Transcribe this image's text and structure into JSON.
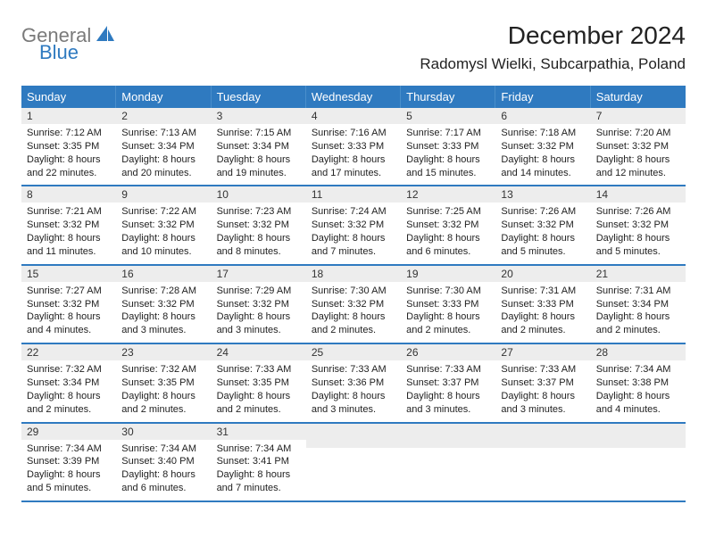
{
  "logo": {
    "word1": "General",
    "word2": "Blue"
  },
  "title": "December 2024",
  "location": "Radomysl Wielki, Subcarpathia, Poland",
  "colors": {
    "brand": "#2f7ac0",
    "gray_band": "#ededed",
    "text": "#222222",
    "logo_gray": "#7a7a7a"
  },
  "weekdays": [
    "Sunday",
    "Monday",
    "Tuesday",
    "Wednesday",
    "Thursday",
    "Friday",
    "Saturday"
  ],
  "weeks": [
    [
      {
        "n": "1",
        "sunrise": "Sunrise: 7:12 AM",
        "sunset": "Sunset: 3:35 PM",
        "day1": "Daylight: 8 hours",
        "day2": "and 22 minutes."
      },
      {
        "n": "2",
        "sunrise": "Sunrise: 7:13 AM",
        "sunset": "Sunset: 3:34 PM",
        "day1": "Daylight: 8 hours",
        "day2": "and 20 minutes."
      },
      {
        "n": "3",
        "sunrise": "Sunrise: 7:15 AM",
        "sunset": "Sunset: 3:34 PM",
        "day1": "Daylight: 8 hours",
        "day2": "and 19 minutes."
      },
      {
        "n": "4",
        "sunrise": "Sunrise: 7:16 AM",
        "sunset": "Sunset: 3:33 PM",
        "day1": "Daylight: 8 hours",
        "day2": "and 17 minutes."
      },
      {
        "n": "5",
        "sunrise": "Sunrise: 7:17 AM",
        "sunset": "Sunset: 3:33 PM",
        "day1": "Daylight: 8 hours",
        "day2": "and 15 minutes."
      },
      {
        "n": "6",
        "sunrise": "Sunrise: 7:18 AM",
        "sunset": "Sunset: 3:32 PM",
        "day1": "Daylight: 8 hours",
        "day2": "and 14 minutes."
      },
      {
        "n": "7",
        "sunrise": "Sunrise: 7:20 AM",
        "sunset": "Sunset: 3:32 PM",
        "day1": "Daylight: 8 hours",
        "day2": "and 12 minutes."
      }
    ],
    [
      {
        "n": "8",
        "sunrise": "Sunrise: 7:21 AM",
        "sunset": "Sunset: 3:32 PM",
        "day1": "Daylight: 8 hours",
        "day2": "and 11 minutes."
      },
      {
        "n": "9",
        "sunrise": "Sunrise: 7:22 AM",
        "sunset": "Sunset: 3:32 PM",
        "day1": "Daylight: 8 hours",
        "day2": "and 10 minutes."
      },
      {
        "n": "10",
        "sunrise": "Sunrise: 7:23 AM",
        "sunset": "Sunset: 3:32 PM",
        "day1": "Daylight: 8 hours",
        "day2": "and 8 minutes."
      },
      {
        "n": "11",
        "sunrise": "Sunrise: 7:24 AM",
        "sunset": "Sunset: 3:32 PM",
        "day1": "Daylight: 8 hours",
        "day2": "and 7 minutes."
      },
      {
        "n": "12",
        "sunrise": "Sunrise: 7:25 AM",
        "sunset": "Sunset: 3:32 PM",
        "day1": "Daylight: 8 hours",
        "day2": "and 6 minutes."
      },
      {
        "n": "13",
        "sunrise": "Sunrise: 7:26 AM",
        "sunset": "Sunset: 3:32 PM",
        "day1": "Daylight: 8 hours",
        "day2": "and 5 minutes."
      },
      {
        "n": "14",
        "sunrise": "Sunrise: 7:26 AM",
        "sunset": "Sunset: 3:32 PM",
        "day1": "Daylight: 8 hours",
        "day2": "and 5 minutes."
      }
    ],
    [
      {
        "n": "15",
        "sunrise": "Sunrise: 7:27 AM",
        "sunset": "Sunset: 3:32 PM",
        "day1": "Daylight: 8 hours",
        "day2": "and 4 minutes."
      },
      {
        "n": "16",
        "sunrise": "Sunrise: 7:28 AM",
        "sunset": "Sunset: 3:32 PM",
        "day1": "Daylight: 8 hours",
        "day2": "and 3 minutes."
      },
      {
        "n": "17",
        "sunrise": "Sunrise: 7:29 AM",
        "sunset": "Sunset: 3:32 PM",
        "day1": "Daylight: 8 hours",
        "day2": "and 3 minutes."
      },
      {
        "n": "18",
        "sunrise": "Sunrise: 7:30 AM",
        "sunset": "Sunset: 3:32 PM",
        "day1": "Daylight: 8 hours",
        "day2": "and 2 minutes."
      },
      {
        "n": "19",
        "sunrise": "Sunrise: 7:30 AM",
        "sunset": "Sunset: 3:33 PM",
        "day1": "Daylight: 8 hours",
        "day2": "and 2 minutes."
      },
      {
        "n": "20",
        "sunrise": "Sunrise: 7:31 AM",
        "sunset": "Sunset: 3:33 PM",
        "day1": "Daylight: 8 hours",
        "day2": "and 2 minutes."
      },
      {
        "n": "21",
        "sunrise": "Sunrise: 7:31 AM",
        "sunset": "Sunset: 3:34 PM",
        "day1": "Daylight: 8 hours",
        "day2": "and 2 minutes."
      }
    ],
    [
      {
        "n": "22",
        "sunrise": "Sunrise: 7:32 AM",
        "sunset": "Sunset: 3:34 PM",
        "day1": "Daylight: 8 hours",
        "day2": "and 2 minutes."
      },
      {
        "n": "23",
        "sunrise": "Sunrise: 7:32 AM",
        "sunset": "Sunset: 3:35 PM",
        "day1": "Daylight: 8 hours",
        "day2": "and 2 minutes."
      },
      {
        "n": "24",
        "sunrise": "Sunrise: 7:33 AM",
        "sunset": "Sunset: 3:35 PM",
        "day1": "Daylight: 8 hours",
        "day2": "and 2 minutes."
      },
      {
        "n": "25",
        "sunrise": "Sunrise: 7:33 AM",
        "sunset": "Sunset: 3:36 PM",
        "day1": "Daylight: 8 hours",
        "day2": "and 3 minutes."
      },
      {
        "n": "26",
        "sunrise": "Sunrise: 7:33 AM",
        "sunset": "Sunset: 3:37 PM",
        "day1": "Daylight: 8 hours",
        "day2": "and 3 minutes."
      },
      {
        "n": "27",
        "sunrise": "Sunrise: 7:33 AM",
        "sunset": "Sunset: 3:37 PM",
        "day1": "Daylight: 8 hours",
        "day2": "and 3 minutes."
      },
      {
        "n": "28",
        "sunrise": "Sunrise: 7:34 AM",
        "sunset": "Sunset: 3:38 PM",
        "day1": "Daylight: 8 hours",
        "day2": "and 4 minutes."
      }
    ],
    [
      {
        "n": "29",
        "sunrise": "Sunrise: 7:34 AM",
        "sunset": "Sunset: 3:39 PM",
        "day1": "Daylight: 8 hours",
        "day2": "and 5 minutes."
      },
      {
        "n": "30",
        "sunrise": "Sunrise: 7:34 AM",
        "sunset": "Sunset: 3:40 PM",
        "day1": "Daylight: 8 hours",
        "day2": "and 6 minutes."
      },
      {
        "n": "31",
        "sunrise": "Sunrise: 7:34 AM",
        "sunset": "Sunset: 3:41 PM",
        "day1": "Daylight: 8 hours",
        "day2": "and 7 minutes."
      },
      {
        "empty": true
      },
      {
        "empty": true
      },
      {
        "empty": true
      },
      {
        "empty": true
      }
    ]
  ]
}
